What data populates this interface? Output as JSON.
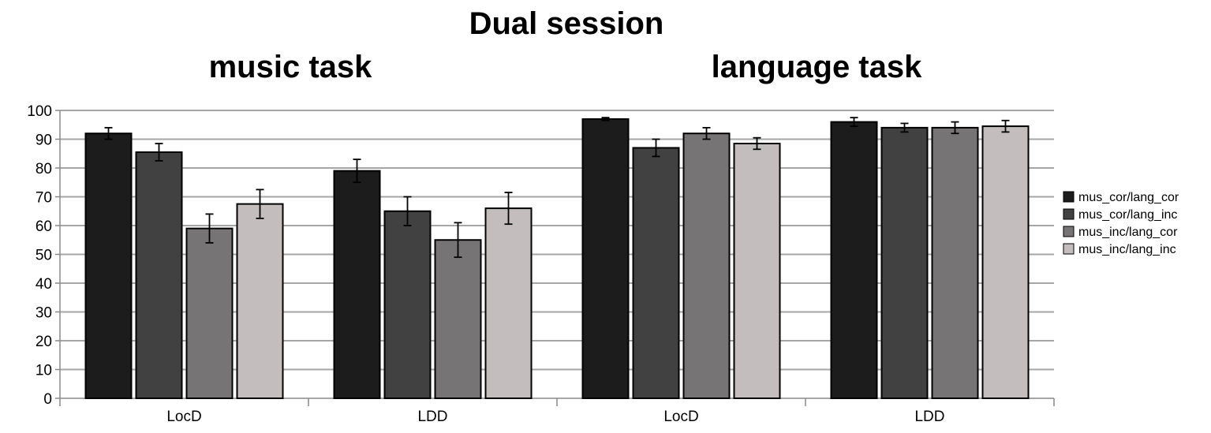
{
  "chart_data": {
    "type": "bar",
    "title": "Dual session",
    "panels": [
      {
        "title": "music task",
        "groups": [
          "LocD",
          "LDD"
        ]
      },
      {
        "title": "language task",
        "groups": [
          "LocD",
          "LDD"
        ]
      }
    ],
    "categories": [
      "LocD",
      "LDD",
      "LocD",
      "LDD"
    ],
    "ylim": [
      0,
      100
    ],
    "yticks": [
      0,
      10,
      20,
      30,
      40,
      50,
      60,
      70,
      80,
      90,
      100
    ],
    "grid": true,
    "legend_position": "right",
    "series": [
      {
        "name": "mus_cor/lang_cor",
        "color": "#1c1c1c",
        "values": [
          92,
          79,
          97,
          96
        ],
        "errors": [
          2,
          4,
          0.5,
          1.5
        ]
      },
      {
        "name": "mus_cor/lang_inc",
        "color": "#414141",
        "values": [
          85.5,
          65,
          87,
          94
        ],
        "errors": [
          3,
          5,
          3,
          1.5
        ]
      },
      {
        "name": "mus_inc/lang_cor",
        "color": "#767474",
        "values": [
          59,
          55,
          92,
          94
        ],
        "errors": [
          5,
          6,
          2,
          2
        ]
      },
      {
        "name": "mus_inc/lang_inc",
        "color": "#c3bdbe",
        "values": [
          67.5,
          66,
          88.5,
          94.5
        ],
        "errors": [
          5,
          5.5,
          2,
          2
        ]
      }
    ]
  }
}
